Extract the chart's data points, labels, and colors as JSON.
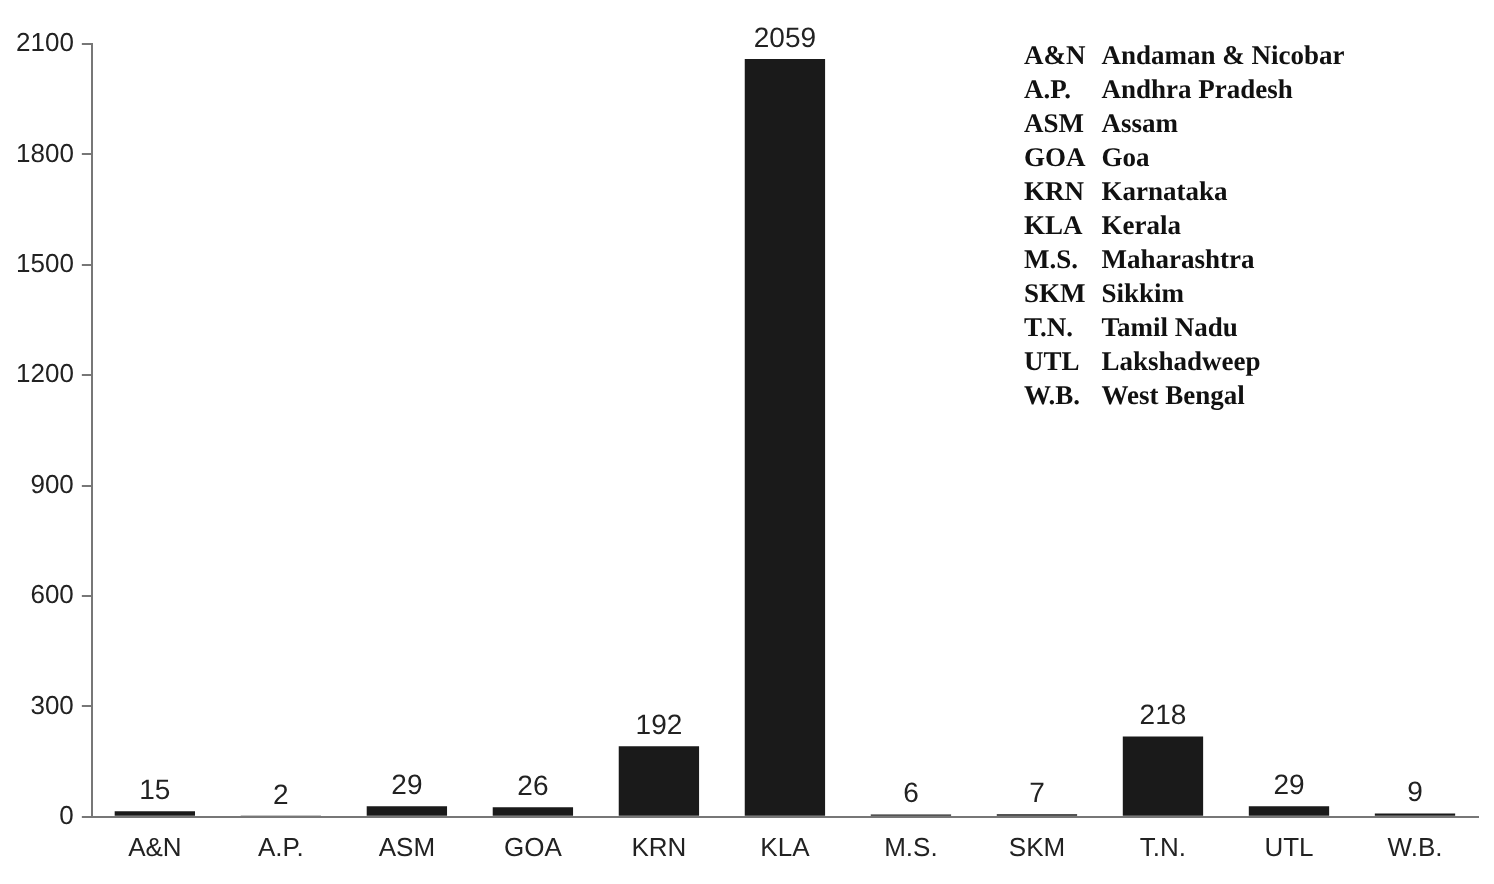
{
  "chart_data": {
    "type": "bar",
    "categories": [
      "A&N",
      "A.P.",
      "ASM",
      "GOA",
      "KRN",
      "KLA",
      "M.S.",
      "SKM",
      "T.N.",
      "UTL",
      "W.B."
    ],
    "values": [
      15,
      2,
      29,
      26,
      192,
      2059,
      6,
      7,
      218,
      29,
      9
    ],
    "color": "#1a1a1a",
    "ylim": [
      0,
      2100
    ],
    "yticks": [
      0,
      300,
      600,
      900,
      1200,
      1500,
      1800,
      2100
    ],
    "grid": false,
    "data_labels": true,
    "annotations": [
      "A&N Andaman & Nicobar",
      "A.P. Andhra Pradesh",
      "ASM Assam",
      "GOA Goa",
      "KRN Karnataka",
      "KLA Kerala",
      "M.S. Maharashtra",
      "SKM Sikkim",
      "T.N. Tamil Nadu",
      "UTL Lakshadweep",
      "W.B. West Bengal"
    ]
  }
}
